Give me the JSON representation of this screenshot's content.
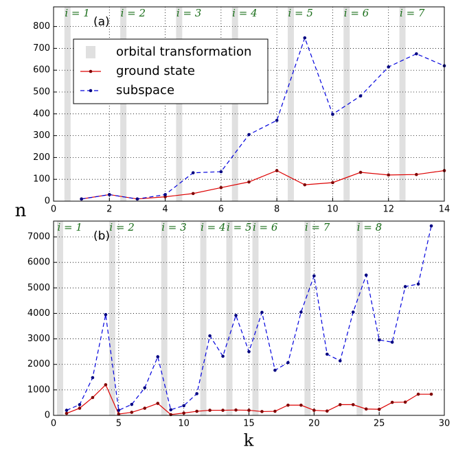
{
  "figure": {
    "ylabel": "n",
    "xlabel": "k"
  },
  "chart_data": [
    {
      "type": "line",
      "label": "(a)",
      "x": [
        1,
        2,
        3,
        4,
        5,
        6,
        7,
        8,
        9,
        10,
        11,
        12,
        13,
        14
      ],
      "series": [
        {
          "name": "ground state",
          "color": "#dd0000",
          "marker_color": "#800000",
          "dash": false,
          "values": [
            10,
            30,
            10,
            20,
            35,
            62,
            88,
            140,
            75,
            85,
            132,
            120,
            122,
            140
          ]
        },
        {
          "name": "subspace",
          "color": "#0000dd",
          "marker_color": "#000080",
          "dash": true,
          "values": [
            10,
            30,
            10,
            30,
            130,
            135,
            305,
            370,
            748,
            398,
            482,
            615,
            675,
            620
          ]
        }
      ],
      "band_name": "orbital transformation",
      "band_color": "#e0e0e0",
      "band_width": 0.22,
      "bands": [
        {
          "x": 0.5,
          "label": "i = 1"
        },
        {
          "x": 2.5,
          "label": "i = 2"
        },
        {
          "x": 4.5,
          "label": "i = 3"
        },
        {
          "x": 6.5,
          "label": "i = 4"
        },
        {
          "x": 8.5,
          "label": "i = 5"
        },
        {
          "x": 10.5,
          "label": "i = 6"
        },
        {
          "x": 12.5,
          "label": "i = 7"
        }
      ],
      "xlim": [
        0,
        14
      ],
      "xticks": [
        0,
        2,
        4,
        6,
        8,
        10,
        12,
        14
      ],
      "ylim": [
        0,
        890
      ],
      "yticks": [
        0,
        100,
        200,
        300,
        400,
        500,
        600,
        700,
        800
      ],
      "grid": true,
      "legend": true
    },
    {
      "type": "line",
      "label": "(b)",
      "x": [
        1,
        2,
        3,
        4,
        5,
        6,
        7,
        8,
        9,
        10,
        11,
        12,
        13,
        14,
        15,
        16,
        17,
        18,
        19,
        20,
        21,
        22,
        23,
        24,
        25,
        26,
        27,
        28,
        29
      ],
      "series": [
        {
          "name": "ground state",
          "color": "#dd0000",
          "marker_color": "#800000",
          "dash": false,
          "values": [
            80,
            280,
            700,
            1200,
            50,
            120,
            280,
            470,
            30,
            90,
            160,
            200,
            200,
            210,
            200,
            150,
            160,
            400,
            400,
            200,
            170,
            420,
            420,
            250,
            240,
            510,
            520,
            830,
            830
          ]
        },
        {
          "name": "subspace",
          "color": "#0000dd",
          "marker_color": "#000080",
          "dash": true,
          "values": [
            200,
            420,
            1480,
            3950,
            200,
            430,
            1080,
            2300,
            220,
            380,
            850,
            3120,
            2320,
            3920,
            2500,
            4040,
            1770,
            2070,
            4050,
            5470,
            2400,
            2140,
            4050,
            5500,
            2960,
            2870,
            5050,
            5150,
            7430
          ]
        }
      ],
      "band_color": "#e0e0e0",
      "band_width": 0.47,
      "bands": [
        {
          "x": 0.5,
          "label": "i = 1"
        },
        {
          "x": 4.5,
          "label": "i = 2"
        },
        {
          "x": 8.5,
          "label": "i = 3"
        },
        {
          "x": 11.5,
          "label": "i = 4"
        },
        {
          "x": 13.5,
          "label": "i = 5"
        },
        {
          "x": 15.5,
          "label": "i = 6"
        },
        {
          "x": 19.5,
          "label": "i = 7"
        },
        {
          "x": 23.5,
          "label": "i = 8"
        }
      ],
      "xlim": [
        0,
        30
      ],
      "xticks": [
        0,
        5,
        10,
        15,
        20,
        25,
        30
      ],
      "ylim": [
        0,
        7620
      ],
      "yticks": [
        0,
        1000,
        2000,
        3000,
        4000,
        5000,
        6000,
        7000
      ],
      "grid": true,
      "legend": false
    }
  ]
}
